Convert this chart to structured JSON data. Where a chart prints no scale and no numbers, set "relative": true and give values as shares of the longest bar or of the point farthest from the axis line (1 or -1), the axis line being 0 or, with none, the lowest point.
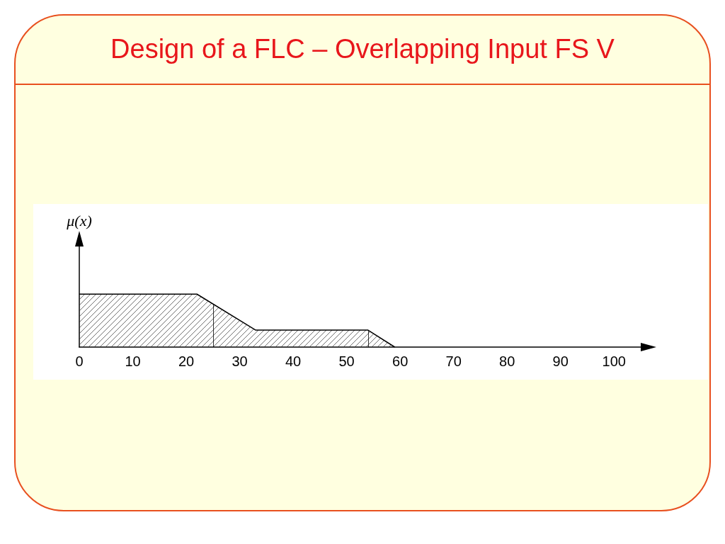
{
  "chart_data": {
    "type": "area",
    "title": "Design of a FLC – Overlapping Input FS V",
    "ylabel": "μ(x)",
    "x": [
      0,
      22,
      33,
      54,
      59
    ],
    "series": [
      {
        "color": "#000000",
        "values": [
          1,
          1,
          0.32,
          0.32,
          0
        ]
      }
    ],
    "relative": true,
    "xlim": [
      0,
      105
    ],
    "xticks": [
      0,
      10,
      20,
      30,
      40,
      50,
      60,
      70,
      80,
      90,
      100
    ],
    "tick_labels": "x",
    "ref_lines": [
      {
        "axis": "x",
        "value": 25,
        "label": null
      },
      {
        "axis": "x",
        "value": 54,
        "label": null
      }
    ]
  }
}
